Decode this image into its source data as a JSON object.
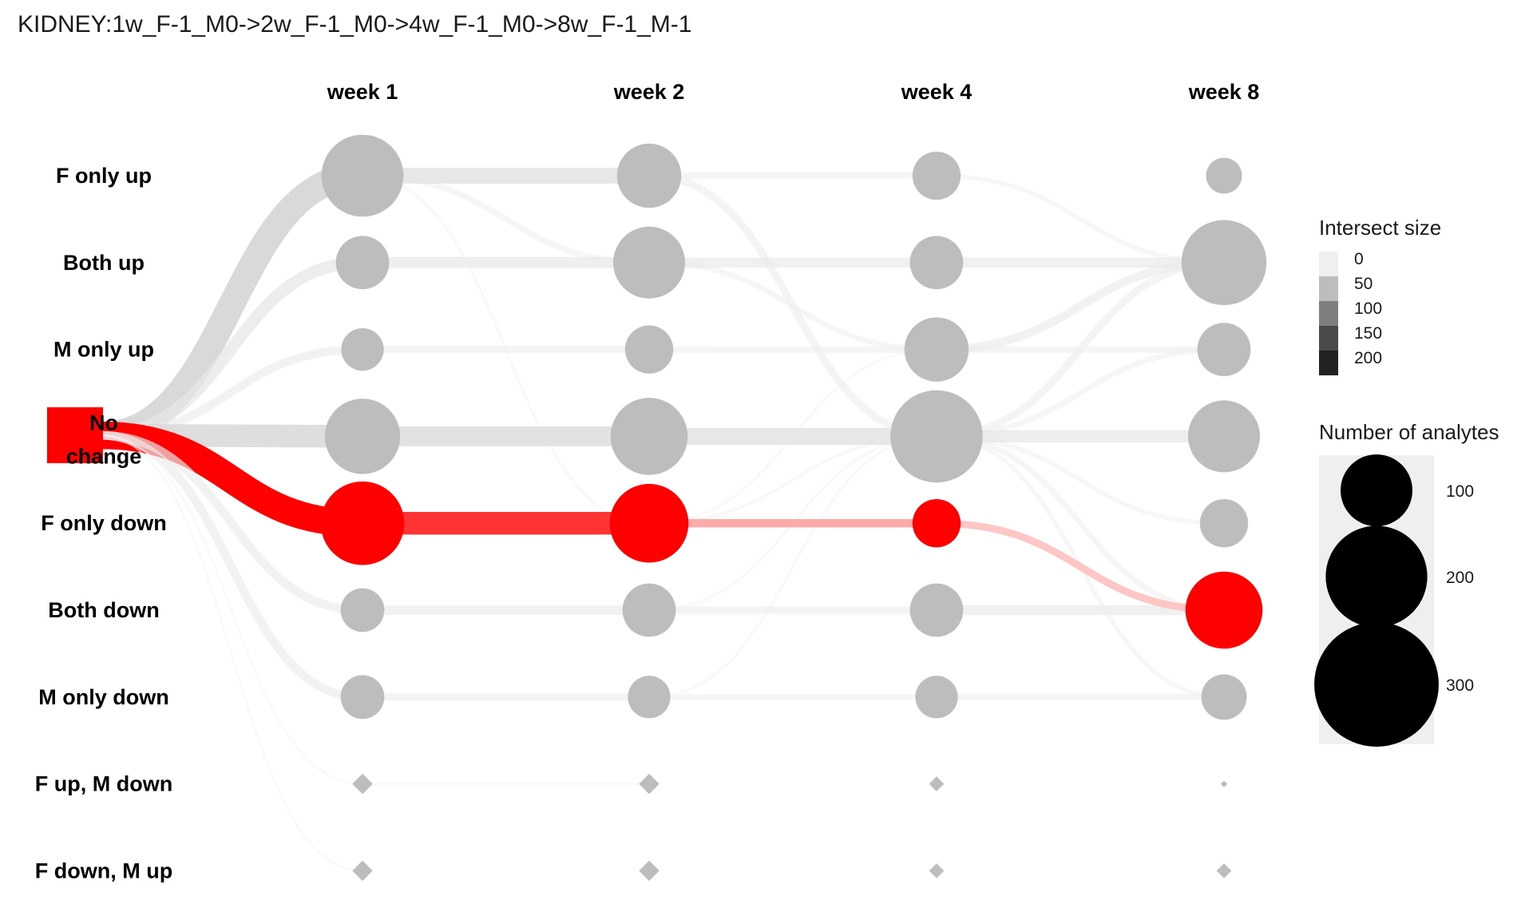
{
  "chart_data": {
    "type": "sankey",
    "title": "KIDNEY:1w_F-1_M0->2w_F-1_M0->4w_F-1_M0->8w_F-1_M-1",
    "timepoints": [
      "week 1",
      "week 2",
      "week 4",
      "week 8"
    ],
    "states": [
      "F only up",
      "Both up",
      "M only up",
      "No change",
      "F only down",
      "Both down",
      "M only down",
      "F up, M down",
      "F down, M up"
    ],
    "start_node": {
      "state": "No change",
      "label_lines": [
        "No",
        "change"
      ]
    },
    "highlight_path": [
      "F only down",
      "F only down",
      "F only down",
      "Both down"
    ],
    "node_sizes": [
      [
        130,
        55,
        35,
        110,
        135,
        37,
        37,
        0,
        0
      ],
      [
        80,
        100,
        45,
        115,
        120,
        55,
        35,
        0,
        0
      ],
      [
        45,
        55,
        80,
        165,
        45,
        55,
        35,
        0,
        0
      ],
      [
        25,
        140,
        55,
        100,
        45,
        115,
        40,
        0,
        0
      ]
    ],
    "zero_marker_sizes": [
      [
        3,
        3
      ],
      [
        3,
        3
      ],
      [
        2.2,
        2.2
      ],
      [
        1,
        2.2
      ]
    ],
    "flows_from_start": [
      {
        "to": "F only up",
        "value": 130
      },
      {
        "to": "Both up",
        "value": 55
      },
      {
        "to": "M only up",
        "value": 35
      },
      {
        "to": "No change",
        "value": 110
      },
      {
        "to": "F only down",
        "value": 135
      },
      {
        "to": "Both down",
        "value": 37
      },
      {
        "to": "M only down",
        "value": 37
      },
      {
        "to": "F up, M down",
        "value": 2
      },
      {
        "to": "F down, M up",
        "value": 2
      }
    ],
    "flows": [
      {
        "from_t": 0,
        "from": "F only up",
        "to": "F only up",
        "value": 75
      },
      {
        "from_t": 0,
        "from": "F only up",
        "to": "Both up",
        "value": 22
      },
      {
        "from_t": 0,
        "from": "F only up",
        "to": "F only down",
        "value": 5
      },
      {
        "from_t": 0,
        "from": "Both up",
        "to": "Both up",
        "value": 50
      },
      {
        "from_t": 0,
        "from": "M only up",
        "to": "M only up",
        "value": 30
      },
      {
        "from_t": 0,
        "from": "No change",
        "to": "No change",
        "value": 95
      },
      {
        "from_t": 0,
        "from": "F only down",
        "to": "F only down",
        "value": 110
      },
      {
        "from_t": 0,
        "from": "Both down",
        "to": "Both down",
        "value": 40
      },
      {
        "from_t": 0,
        "from": "M only down",
        "to": "M only down",
        "value": 30
      },
      {
        "from_t": 0,
        "from": "F up, M down",
        "to": "F up, M down",
        "value": 3
      },
      {
        "from_t": 1,
        "from": "F only up",
        "to": "F only up",
        "value": 25
      },
      {
        "from_t": 1,
        "from": "F only up",
        "to": "No change",
        "value": 30
      },
      {
        "from_t": 1,
        "from": "Both up",
        "to": "Both up",
        "value": 45
      },
      {
        "from_t": 1,
        "from": "Both up",
        "to": "M only up",
        "value": 20
      },
      {
        "from_t": 1,
        "from": "M only up",
        "to": "M only up",
        "value": 25
      },
      {
        "from_t": 1,
        "from": "No change",
        "to": "No change",
        "value": 80
      },
      {
        "from_t": 1,
        "from": "F only down",
        "to": "F only down",
        "value": 35
      },
      {
        "from_t": 1,
        "from": "F only down",
        "to": "No change",
        "value": 8
      },
      {
        "from_t": 1,
        "from": "F only down",
        "to": "M only up",
        "value": 6
      },
      {
        "from_t": 1,
        "from": "Both down",
        "to": "Both down",
        "value": 30
      },
      {
        "from_t": 1,
        "from": "Both down",
        "to": "No change",
        "value": 6
      },
      {
        "from_t": 1,
        "from": "M only down",
        "to": "M only down",
        "value": 22
      },
      {
        "from_t": 1,
        "from": "M only down",
        "to": "No change",
        "value": 6
      },
      {
        "from_t": 2,
        "from": "F only up",
        "to": "Both up",
        "value": 15
      },
      {
        "from_t": 2,
        "from": "Both up",
        "to": "Both up",
        "value": 45
      },
      {
        "from_t": 2,
        "from": "M only up",
        "to": "Both up",
        "value": 35
      },
      {
        "from_t": 2,
        "from": "M only up",
        "to": "M only up",
        "value": 25
      },
      {
        "from_t": 2,
        "from": "No change",
        "to": "No change",
        "value": 55
      },
      {
        "from_t": 2,
        "from": "No change",
        "to": "Both up",
        "value": 30
      },
      {
        "from_t": 2,
        "from": "No change",
        "to": "M only up",
        "value": 20
      },
      {
        "from_t": 2,
        "from": "No change",
        "to": "F only down",
        "value": 15
      },
      {
        "from_t": 2,
        "from": "No change",
        "to": "Both down",
        "value": 20
      },
      {
        "from_t": 2,
        "from": "No change",
        "to": "M only down",
        "value": 15
      },
      {
        "from_t": 2,
        "from": "F only down",
        "to": "Both down",
        "value": 30
      },
      {
        "from_t": 2,
        "from": "Both down",
        "to": "Both down",
        "value": 45
      },
      {
        "from_t": 2,
        "from": "M only down",
        "to": "M only down",
        "value": 25
      }
    ],
    "highlight_flow_colors": [
      "#ff0000",
      "#ff3333",
      "#ffaaaa",
      "#ffc6c6"
    ],
    "legend": {
      "intersect_title": "Intersect size",
      "intersect_breaks": [
        "0",
        "50",
        "100",
        "150",
        "200"
      ],
      "size_title": "Number of analytes",
      "size_breaks": [
        "100",
        "200",
        "300"
      ]
    },
    "colors": {
      "node": "#bdbdbd",
      "highlight": "#ff0000",
      "legend_bg": "#efefef"
    }
  }
}
